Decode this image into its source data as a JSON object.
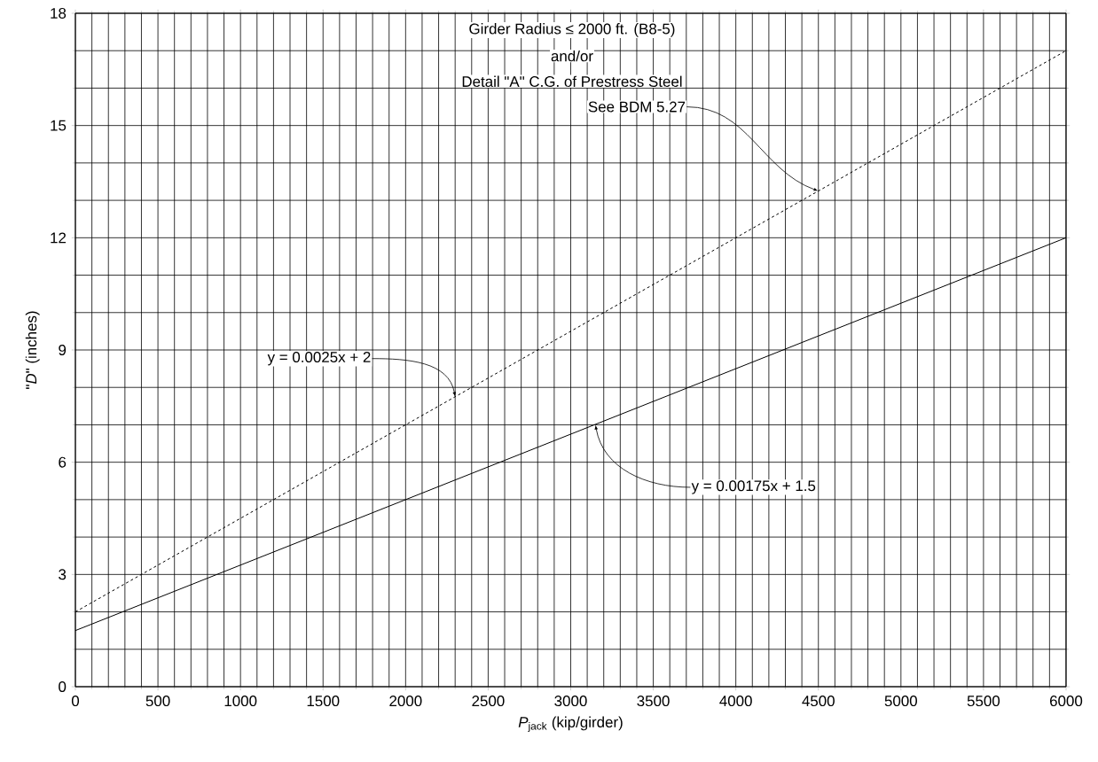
{
  "chart_data": {
    "type": "line",
    "xlabel": "*P*$_{jack}$  (kip/girder)",
    "ylabel": "\"*D*\" (inches)",
    "x": [
      0,
      6000
    ],
    "series": [
      {
        "color": "#000000",
        "line_style": "dashed",
        "values": [
          2,
          17
        ]
      },
      {
        "color": "#000000",
        "line_style": "solid",
        "values": [
          1.5,
          12
        ]
      }
    ],
    "xlim": [
      0,
      6000
    ],
    "ylim": [
      0,
      18
    ],
    "xticks": [
      0,
      500,
      1000,
      1500,
      2000,
      2500,
      3000,
      3500,
      4000,
      4500,
      5000,
      5500,
      6000
    ],
    "yticks": [
      0,
      3,
      6,
      9,
      12,
      15,
      18
    ],
    "grid": true,
    "marker": "none",
    "annotations": [
      {
        "text": "y = 0.0025x + 2",
        "x": 2300,
        "y": 7.75
      },
      {
        "text": "y = 0.00175x + 1.5",
        "x": 3150,
        "y": 7.0
      },
      "Girder Radius ≤ 2000 ft. (B8-5)",
      "and/or",
      "Detail \"A\" C.G. of Prestress Steel",
      {
        "text": "See BDM 5.27",
        "x": 4500,
        "y": 13.25
      }
    ]
  }
}
